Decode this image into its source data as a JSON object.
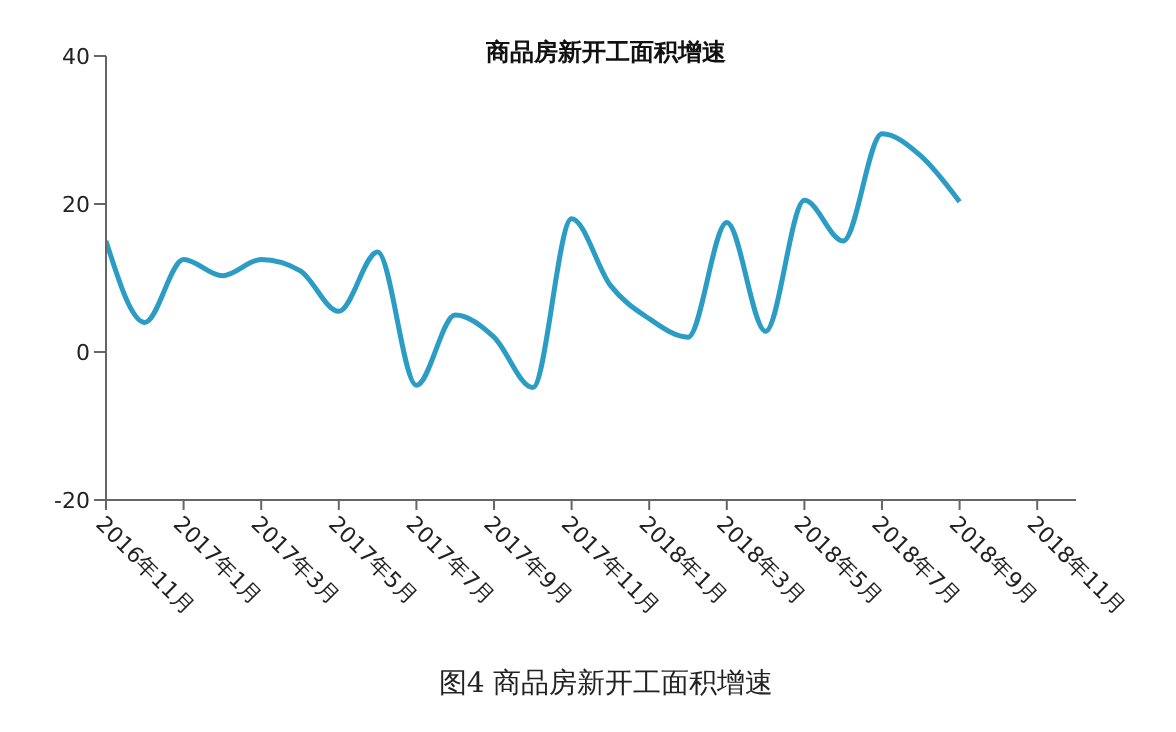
{
  "chart_data": {
    "type": "line",
    "title": "商品房新开工面积增速",
    "x": [
      "2016-11",
      "2016-12",
      "2017-01",
      "2017-02",
      "2017-03",
      "2017-04",
      "2017-05",
      "2017-06",
      "2017-07",
      "2017-08",
      "2017-09",
      "2017-10",
      "2017-11",
      "2017-12",
      "2018-01",
      "2018-02",
      "2018-03",
      "2018-04",
      "2018-05",
      "2018-06",
      "2018-07",
      "2018-08",
      "2018-09"
    ],
    "series": [
      {
        "color": "#2b9cc3",
        "values": [
          15,
          4,
          12.5,
          10.3,
          12.5,
          11,
          5.5,
          13.5,
          -4.5,
          5,
          2,
          -4.8,
          18,
          9,
          4.5,
          2,
          17.5,
          2.8,
          20.5,
          15,
          29.5,
          26.5,
          20.3
        ]
      }
    ],
    "xlim": [
      "2016-11",
      "2018-12"
    ],
    "xticks": [
      {
        "value": "2016-11",
        "label": "2016年11月"
      },
      {
        "value": "2017-01",
        "label": "2017年1月"
      },
      {
        "value": "2017-03",
        "label": "2017年3月"
      },
      {
        "value": "2017-05",
        "label": "2017年5月"
      },
      {
        "value": "2017-07",
        "label": "2017年7月"
      },
      {
        "value": "2017-09",
        "label": "2017年9月"
      },
      {
        "value": "2017-11",
        "label": "2017年11月"
      },
      {
        "value": "2018-01",
        "label": "2018年1月"
      },
      {
        "value": "2018-03",
        "label": "2018年3月"
      },
      {
        "value": "2018-05",
        "label": "2018年5月"
      },
      {
        "value": "2018-07",
        "label": "2018年7月"
      },
      {
        "value": "2018-09",
        "label": "2018年9月"
      },
      {
        "value": "2018-11",
        "label": "2018年11月"
      }
    ],
    "ylim": [
      -20,
      40
    ],
    "yticks": [
      -20,
      0,
      20,
      40
    ],
    "grid": false,
    "marker": "none",
    "line_style": "solid",
    "annotations": [
      "图4 商品房新开工面积增速"
    ]
  }
}
